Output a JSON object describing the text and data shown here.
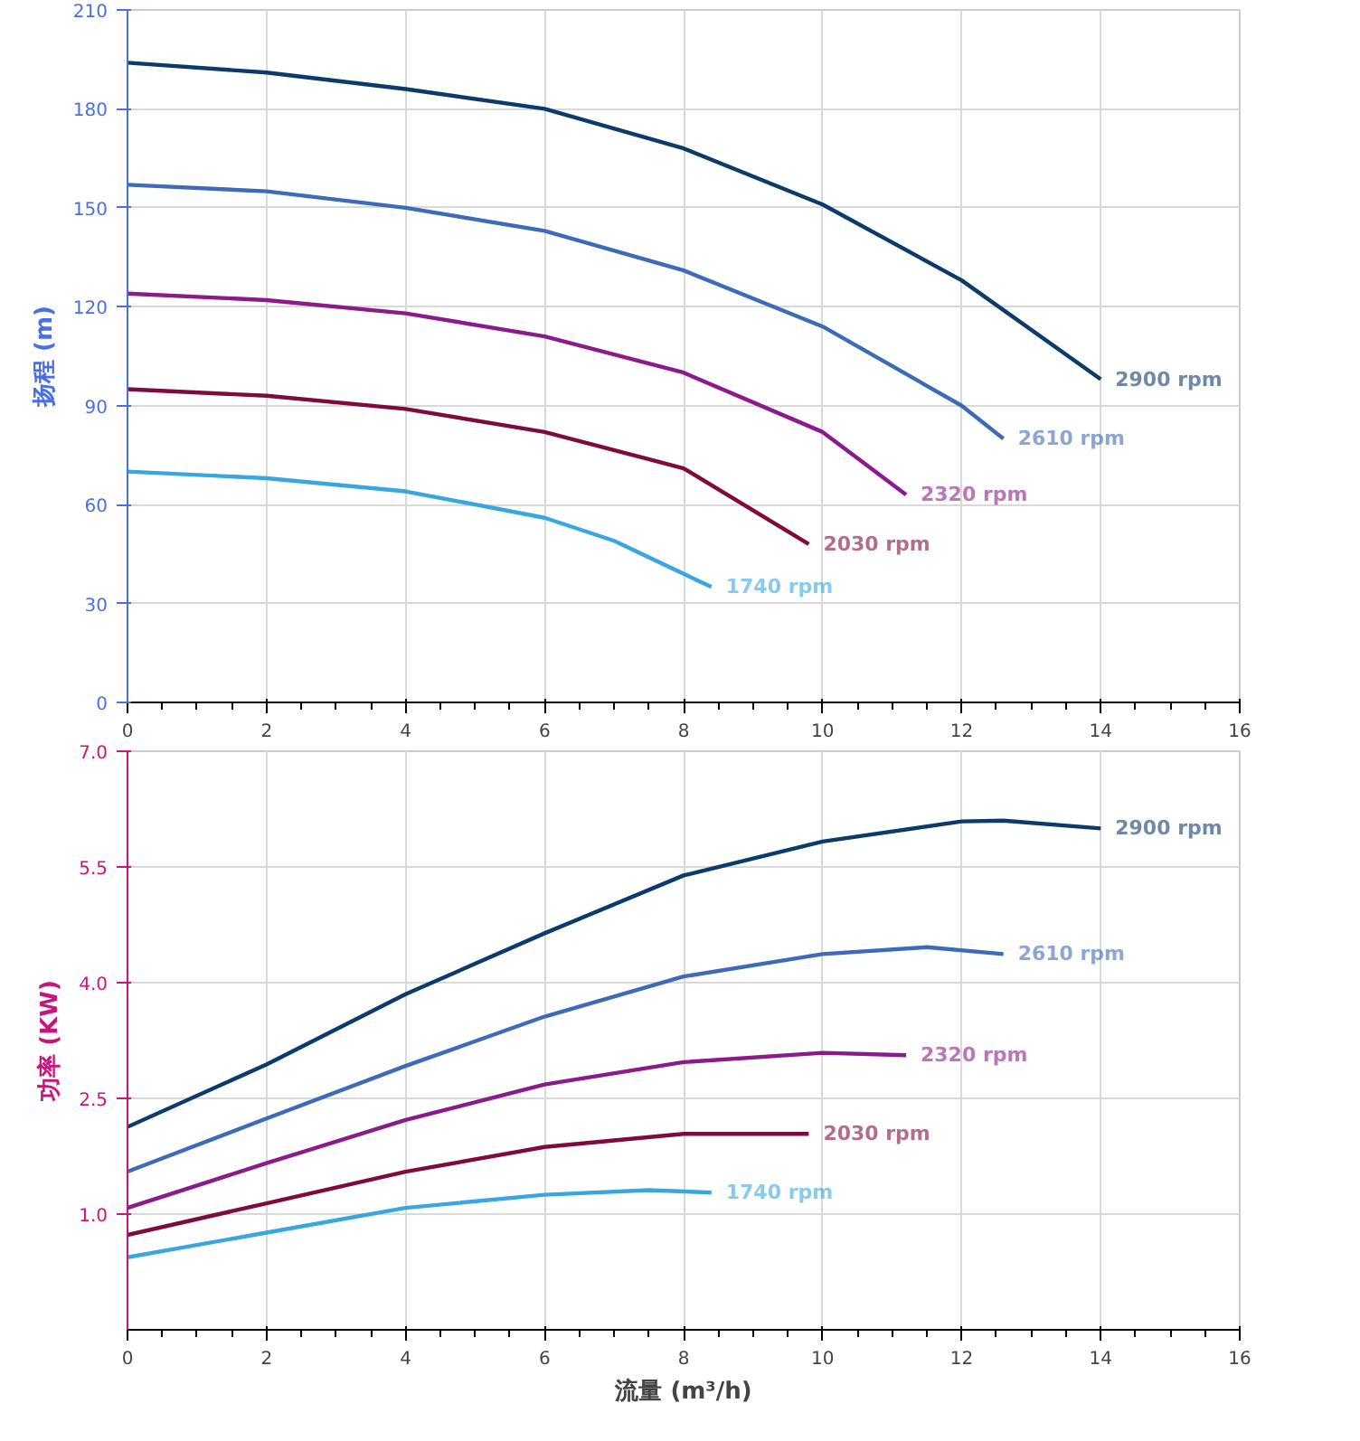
{
  "chart_data": [
    {
      "type": "line",
      "ylabel": "扬程 (m)",
      "xlim": [
        0,
        16
      ],
      "ylim": [
        0,
        210
      ],
      "xticks": [
        0,
        2,
        4,
        6,
        8,
        10,
        12,
        14,
        16
      ],
      "yticks": [
        0,
        30,
        60,
        90,
        120,
        150,
        180,
        210
      ],
      "grid": true,
      "series": [
        {
          "name": "2900 rpm",
          "color": "#0b3a6b",
          "x": [
            0,
            2,
            4,
            6,
            8,
            10,
            12,
            14
          ],
          "values": [
            194,
            191,
            186,
            180,
            168,
            151,
            128,
            98
          ]
        },
        {
          "name": "2610 rpm",
          "color": "#3e6bb8",
          "x": [
            0,
            2,
            4,
            6,
            8,
            10,
            12,
            12.6
          ],
          "values": [
            157,
            155,
            150,
            143,
            131,
            114,
            90,
            80
          ]
        },
        {
          "name": "2320 rpm",
          "color": "#8b1a8b",
          "x": [
            0,
            2,
            4,
            6,
            8,
            10,
            11.2
          ],
          "values": [
            124,
            122,
            118,
            111,
            100,
            82,
            63
          ]
        },
        {
          "name": "2030 rpm",
          "color": "#7f0b3c",
          "x": [
            0,
            2,
            4,
            6,
            8,
            9.8
          ],
          "values": [
            95,
            93,
            89,
            82,
            71,
            48
          ]
        },
        {
          "name": "1740 rpm",
          "color": "#3aa6e0",
          "x": [
            0,
            2,
            4,
            6,
            7,
            8.4
          ],
          "values": [
            70,
            68,
            64,
            56,
            49,
            35
          ]
        }
      ]
    },
    {
      "type": "line",
      "xlabel": "流量 (m³/h)",
      "ylabel": "功率 (KW)",
      "xlim": [
        0,
        16
      ],
      "ylim": [
        -0.5,
        7.0
      ],
      "xticks": [
        0,
        2,
        4,
        6,
        8,
        10,
        12,
        14,
        16
      ],
      "yticks": [
        {
          "value": 1,
          "label": "1.0"
        },
        2.5,
        {
          "value": 4,
          "label": "4.0"
        },
        5.5,
        {
          "value": 7,
          "label": "7.0"
        }
      ],
      "grid": true,
      "series": [
        {
          "name": "2900 rpm",
          "color": "#0b3a6b",
          "x": [
            0,
            2,
            4,
            6,
            8,
            10,
            12,
            12.6,
            14
          ],
          "values": [
            2.13,
            2.94,
            3.85,
            4.64,
            5.39,
            5.83,
            6.09,
            6.1,
            6.0
          ]
        },
        {
          "name": "2610 rpm",
          "color": "#3e6bb8",
          "x": [
            0,
            2,
            4,
            6,
            8,
            10,
            11.5,
            12.6
          ],
          "values": [
            1.55,
            2.24,
            2.92,
            3.56,
            4.08,
            4.37,
            4.46,
            4.37
          ]
        },
        {
          "name": "2320 rpm",
          "color": "#8b1a8b",
          "x": [
            0,
            2,
            4,
            6,
            8,
            10,
            11.2
          ],
          "values": [
            1.08,
            1.66,
            2.22,
            2.68,
            2.97,
            3.09,
            3.06
          ]
        },
        {
          "name": "2030 rpm",
          "color": "#7f0b3c",
          "x": [
            0,
            2,
            4,
            6,
            8,
            9.8
          ],
          "values": [
            0.73,
            1.14,
            1.55,
            1.87,
            2.04,
            2.04
          ]
        },
        {
          "name": "1740 rpm",
          "color": "#3aa6e0",
          "x": [
            0,
            2,
            4,
            6,
            7.5,
            8.4
          ],
          "values": [
            0.44,
            0.76,
            1.08,
            1.25,
            1.31,
            1.28
          ]
        }
      ]
    }
  ]
}
